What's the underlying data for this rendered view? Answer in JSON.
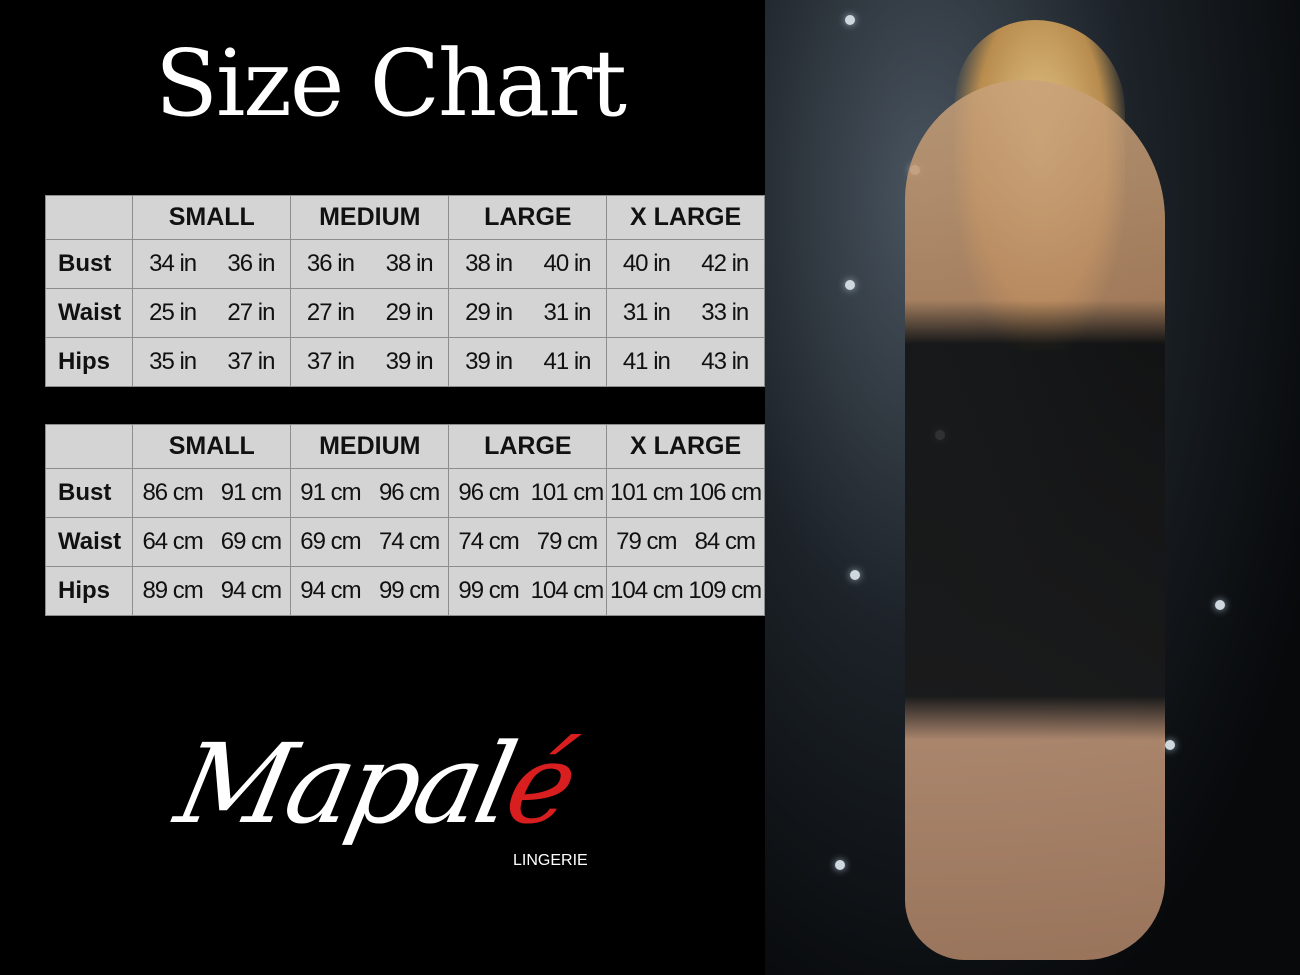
{
  "title": "Size Chart",
  "sizes": [
    "SMALL",
    "MEDIUM",
    "LARGE",
    "X LARGE"
  ],
  "inches_table": {
    "rows": [
      {
        "label": "Bust",
        "values": [
          "34 in",
          "36 in",
          "36 in",
          "38 in",
          "38 in",
          "40 in",
          "40 in",
          "42 in"
        ]
      },
      {
        "label": "Waist",
        "values": [
          "25 in",
          "27 in",
          "27 in",
          "29 in",
          "29 in",
          "31 in",
          "31 in",
          "33 in"
        ]
      },
      {
        "label": "Hips",
        "values": [
          "35 in",
          "37 in",
          "37 in",
          "39 in",
          "39 in",
          "41 in",
          "41 in",
          "43 in"
        ]
      }
    ]
  },
  "cm_table": {
    "rows": [
      {
        "label": "Bust",
        "values": [
          "86 cm",
          "91 cm",
          "91 cm",
          "96 cm",
          "96 cm",
          "101 cm",
          "101 cm",
          "106 cm"
        ]
      },
      {
        "label": "Waist",
        "values": [
          "64 cm",
          "69 cm",
          "69 cm",
          "74 cm",
          "74 cm",
          "79  cm",
          "79 cm",
          "84 cm"
        ]
      },
      {
        "label": "Hips",
        "values": [
          "89 cm",
          "94 cm",
          "94 cm",
          "99 cm",
          "99 cm",
          "104 cm",
          "104 cm",
          "109 cm"
        ]
      }
    ]
  },
  "logo": {
    "main": "Mapal",
    "accent": "é",
    "sub": "LINGERIE",
    "accent_color": "#d81e1e"
  },
  "colors": {
    "background": "#000000",
    "table_bg": "#d4d4d4"
  }
}
